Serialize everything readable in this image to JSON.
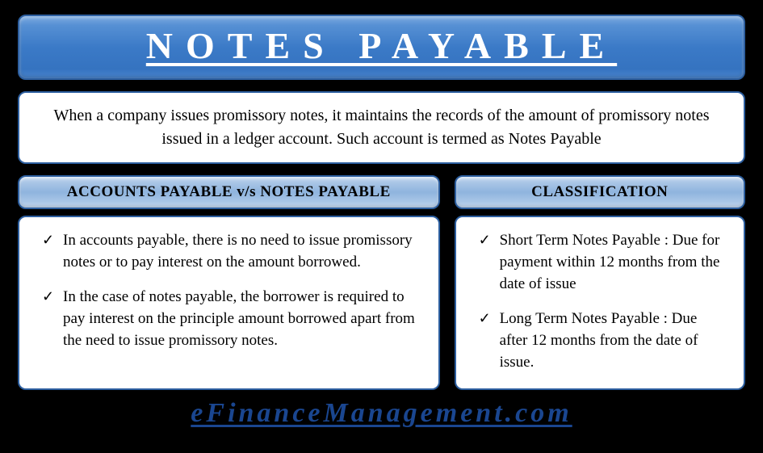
{
  "title": "NOTES PAYABLE",
  "definition": "When a company issues promissory notes, it maintains the records of the amount of promissory notes issued in a ledger account. Such account is termed as Notes Payable",
  "left": {
    "header": "ACCOUNTS PAYABLE v/s NOTES PAYABLE",
    "items": [
      "In accounts payable, there is no need to issue promissory notes or to pay interest on the amount borrowed.",
      "In the case of notes payable, the borrower is required to pay interest on the principle amount borrowed apart from the need to issue promissory notes."
    ]
  },
  "right": {
    "header": "CLASSIFICATION",
    "items": [
      "Short Term Notes Payable : Due for payment within 12 months from the date of issue",
      "Long Term Notes Payable : Due after 12 months from the date of issue."
    ]
  },
  "footer": "eFinanceManagement.com",
  "colors": {
    "background": "#000000",
    "title_gradient_top": "#7aa9e0",
    "title_gradient_bottom": "#3573c0",
    "border": "#2d5fa0",
    "section_gradient": "#a8c5e6",
    "footer_text": "#1a4690"
  }
}
